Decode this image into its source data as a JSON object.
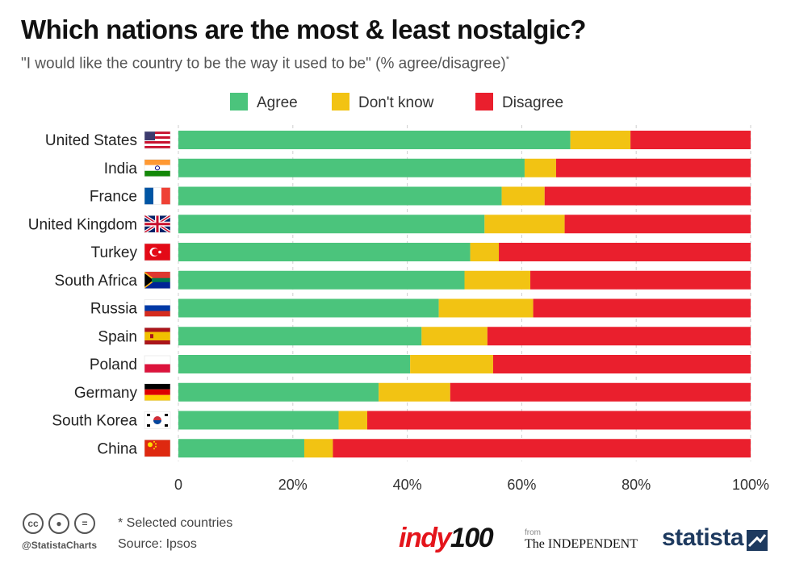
{
  "title": "Which nations are the most & least nostalgic?",
  "subtitle": "\"I would like the country to be the way it used to be\" (% agree/disagree)",
  "subtitle_mark": "*",
  "footer": {
    "note": "* Selected countries",
    "source": "Source: Ipsos",
    "handle": "@StatistaCharts",
    "indy_text": "indy",
    "indy_num": "100",
    "from": "from",
    "independent": "The INDEPENDENT",
    "statista": "statista"
  },
  "chart_data": {
    "type": "bar",
    "orientation": "horizontal",
    "stacked": true,
    "categories": [
      "United States",
      "India",
      "France",
      "United Kingdom",
      "Turkey",
      "South Africa",
      "Russia",
      "Spain",
      "Poland",
      "Germany",
      "South Korea",
      "China"
    ],
    "series": [
      {
        "name": "Agree",
        "color": "#4bc47c",
        "values": [
          68.5,
          60.5,
          56.5,
          53.5,
          51,
          50,
          45.5,
          42.5,
          40.5,
          35,
          28,
          22
        ]
      },
      {
        "name": "Don't know",
        "color": "#f2c313",
        "values": [
          10.5,
          5.5,
          7.5,
          14,
          5,
          11.5,
          16.5,
          11.5,
          14.5,
          12.5,
          5,
          5
        ]
      },
      {
        "name": "Disagree",
        "color": "#ea1f2d",
        "values": [
          21,
          34,
          36,
          32.5,
          44,
          38.5,
          38,
          46,
          45,
          52.5,
          67,
          73
        ]
      }
    ],
    "xlim": [
      0,
      100
    ],
    "x_ticks": [
      "0",
      "20%",
      "40%",
      "60%",
      "80%",
      "100%"
    ],
    "grid": "vertical dashed",
    "legend": "top-center",
    "flag_icons": [
      "us-flag-icon",
      "india-flag-icon",
      "france-flag-icon",
      "uk-flag-icon",
      "turkey-flag-icon",
      "south-africa-flag-icon",
      "russia-flag-icon",
      "spain-flag-icon",
      "poland-flag-icon",
      "germany-flag-icon",
      "south-korea-flag-icon",
      "china-flag-icon"
    ]
  }
}
